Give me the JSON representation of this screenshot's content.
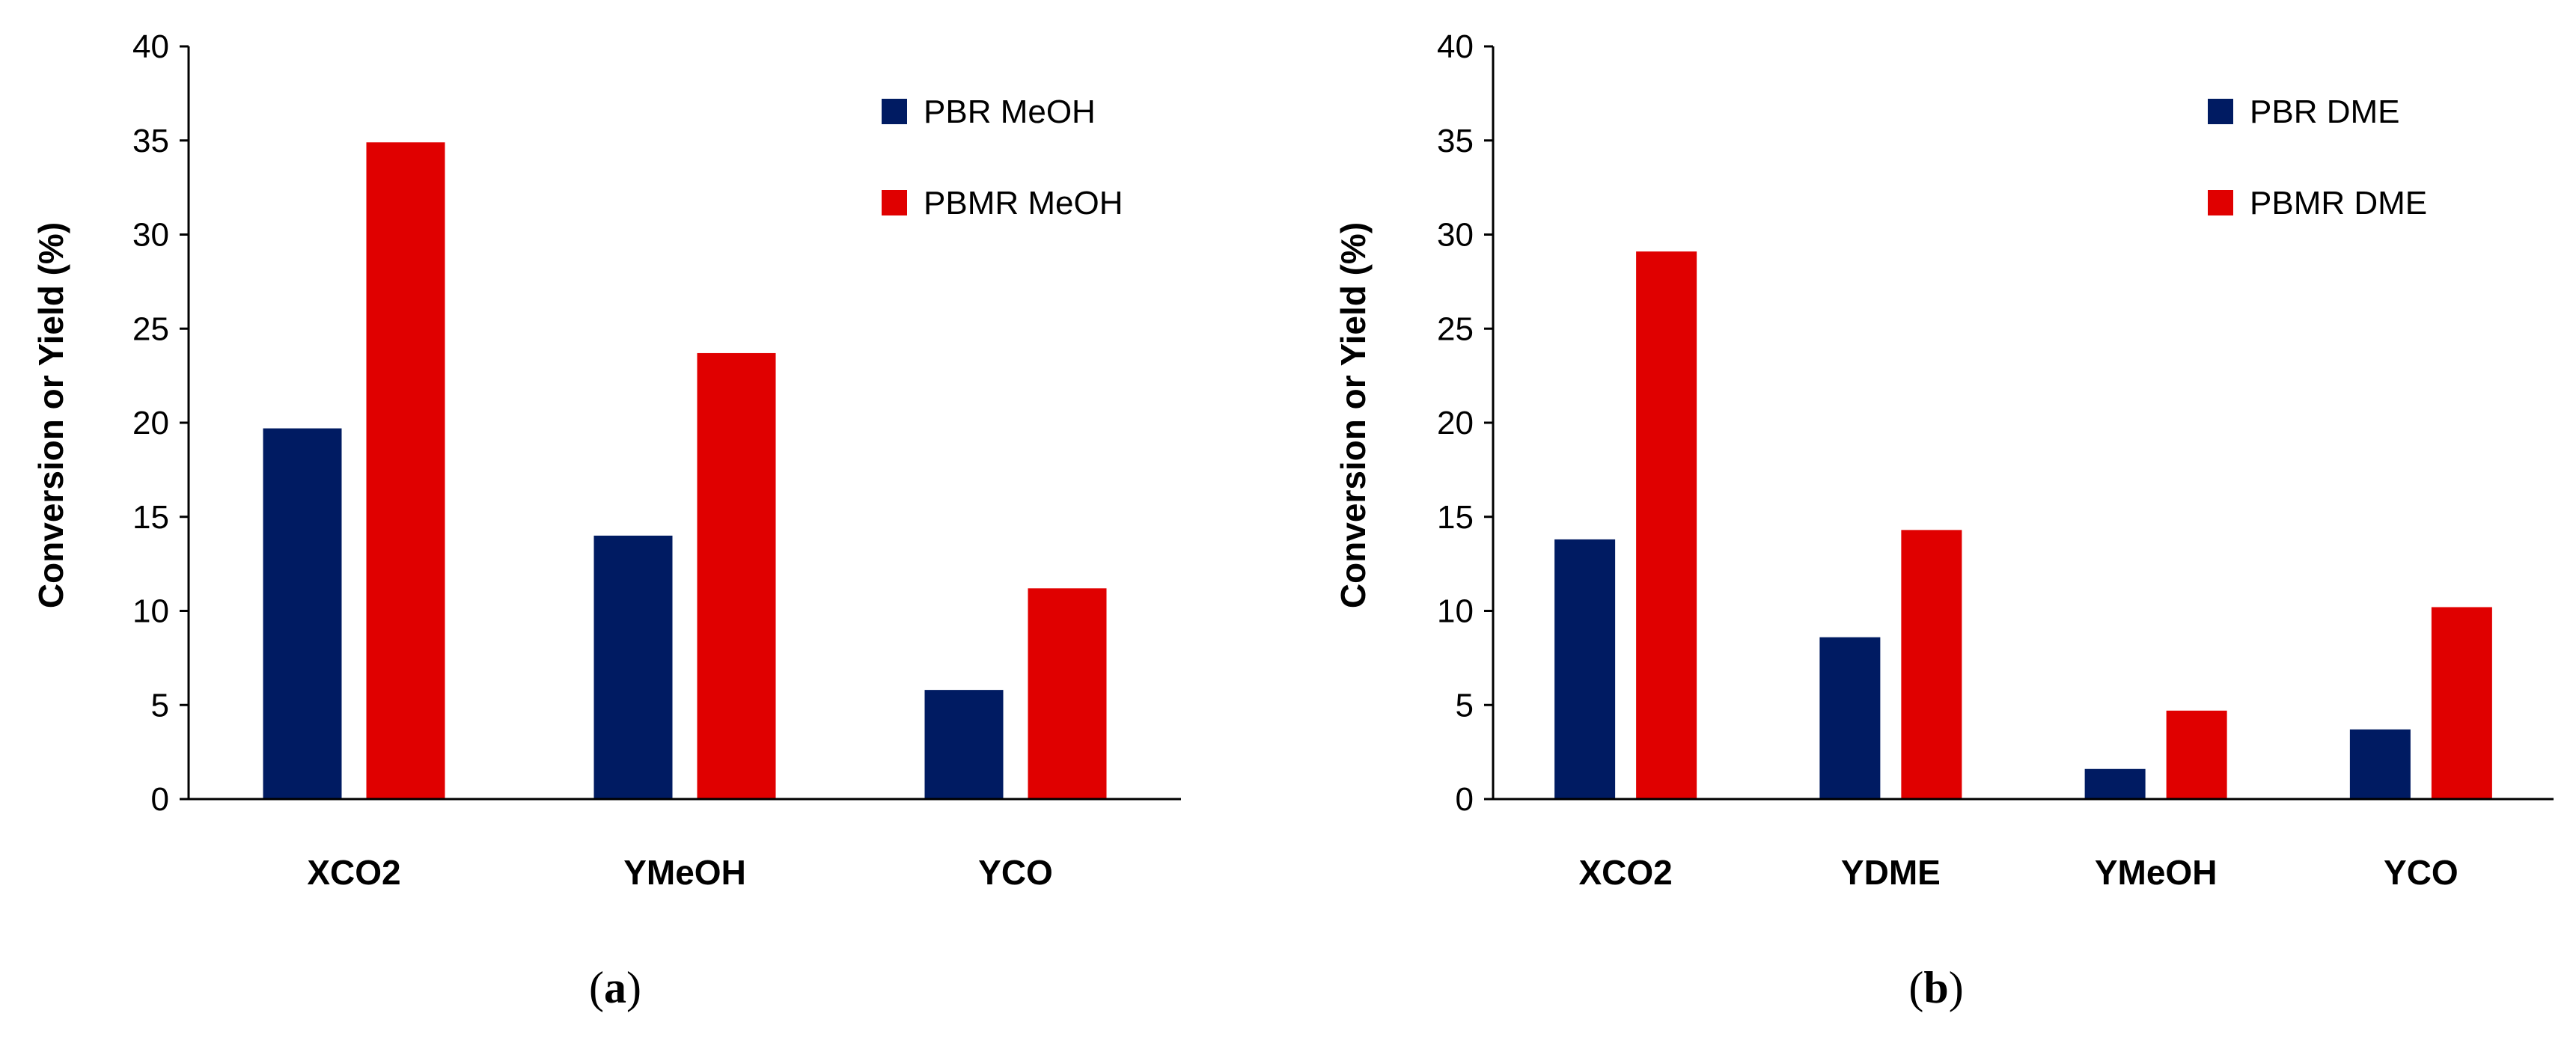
{
  "chart_data": [
    {
      "type": "bar",
      "panel_label": "a",
      "ylabel": "Conversion or Yield (%)",
      "xlabel": "",
      "ylim": [
        0,
        40
      ],
      "yticks": [
        0,
        5,
        10,
        15,
        20,
        25,
        30,
        35,
        40
      ],
      "grid": false,
      "legend_position": "top-right",
      "categories": [
        "XCO2",
        "YMeOH",
        "YCO"
      ],
      "series": [
        {
          "name": "PBR MeOH",
          "color": "#001B62",
          "values": [
            19.7,
            14.0,
            5.8
          ]
        },
        {
          "name": "PBMR MeOH",
          "color": "#E00000",
          "values": [
            34.9,
            23.7,
            11.2
          ]
        }
      ]
    },
    {
      "type": "bar",
      "panel_label": "b",
      "ylabel": "Conversion or Yield (%)",
      "xlabel": "",
      "ylim": [
        0,
        40
      ],
      "yticks": [
        0,
        5,
        10,
        15,
        20,
        25,
        30,
        35,
        40
      ],
      "grid": false,
      "legend_position": "top-right",
      "categories": [
        "XCO2",
        "YDME",
        "YMeOH",
        "YCO"
      ],
      "series": [
        {
          "name": "PBR DME",
          "color": "#001B62",
          "values": [
            13.8,
            8.6,
            1.6,
            3.7
          ]
        },
        {
          "name": "PBMR DME",
          "color": "#E00000",
          "values": [
            29.1,
            14.3,
            4.7,
            10.2
          ]
        }
      ]
    }
  ]
}
